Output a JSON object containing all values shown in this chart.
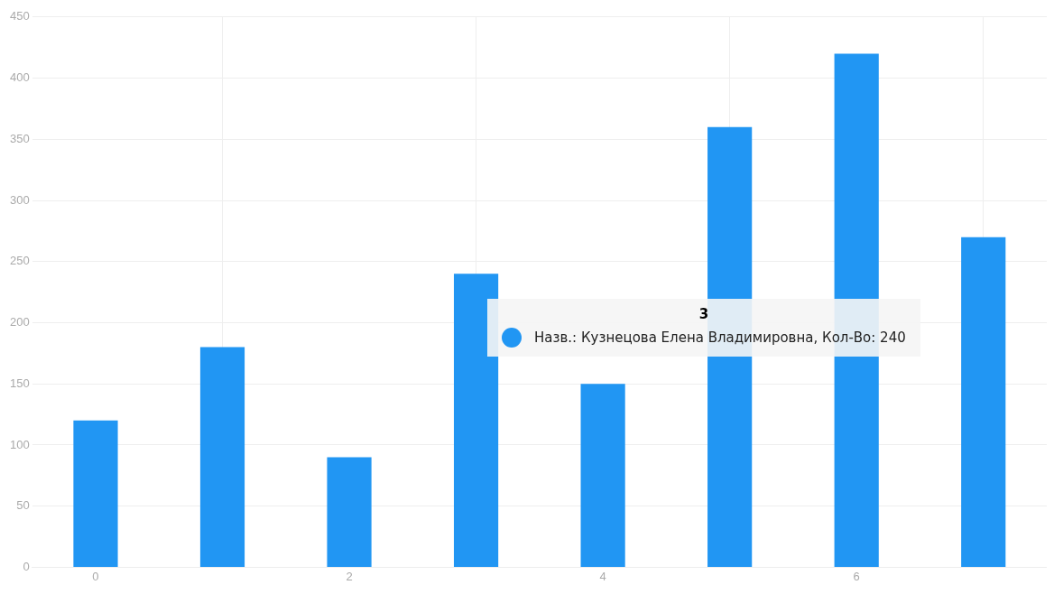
{
  "chart_data": {
    "type": "bar",
    "x": [
      0,
      1,
      2,
      3,
      4,
      5,
      6,
      7
    ],
    "values": [
      120,
      180,
      90,
      240,
      150,
      360,
      420,
      270
    ],
    "color": "#2196f3",
    "xlim": [
      -0.5,
      7.5
    ],
    "xticks": [
      0,
      2,
      4,
      6
    ],
    "ylim": [
      0,
      450
    ],
    "yticks": [
      0,
      50,
      100,
      150,
      200,
      250,
      300,
      350,
      400,
      450
    ],
    "grid": true,
    "annotations": [
      "3",
      "Назв.: Кузнецова Елена Владимировна, Кол-Во: 240"
    ]
  }
}
